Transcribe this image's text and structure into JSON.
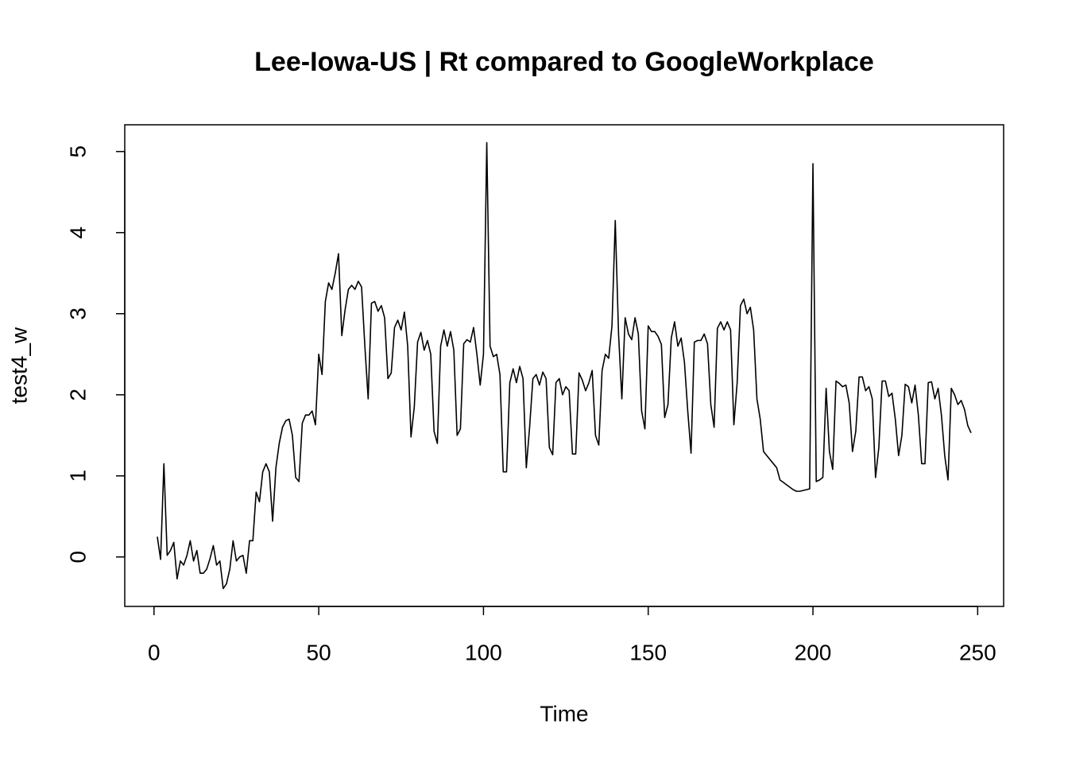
{
  "chart_data": {
    "type": "line",
    "title": "Lee-Iowa-US | Rt compared to GoogleWorkplace",
    "x_label": "Time",
    "y_label": "test4_w",
    "color": "#000000",
    "xlim": [
      -8.88,
      257.88
    ],
    "ylim": [
      -0.61,
      5.33
    ],
    "xticks": [
      0,
      50,
      100,
      150,
      200,
      250
    ],
    "yticks": [
      0,
      1,
      2,
      3,
      4,
      5
    ],
    "grid": false,
    "x": [
      1,
      2,
      3,
      4,
      5,
      6,
      7,
      8,
      9,
      10,
      11,
      12,
      13,
      14,
      15,
      16,
      17,
      18,
      19,
      20,
      21,
      22,
      23,
      24,
      25,
      26,
      27,
      28,
      29,
      30,
      31,
      32,
      33,
      34,
      35,
      36,
      37,
      38,
      39,
      40,
      41,
      42,
      43,
      44,
      45,
      46,
      47,
      48,
      49,
      50,
      51,
      52,
      53,
      54,
      55,
      56,
      57,
      58,
      59,
      60,
      61,
      62,
      63,
      64,
      65,
      66,
      67,
      68,
      69,
      70,
      71,
      72,
      73,
      74,
      75,
      76,
      77,
      78,
      79,
      80,
      81,
      82,
      83,
      84,
      85,
      86,
      87,
      88,
      89,
      90,
      91,
      92,
      93,
      94,
      95,
      96,
      97,
      98,
      99,
      100,
      101,
      102,
      103,
      104,
      105,
      106,
      107,
      108,
      109,
      110,
      111,
      112,
      113,
      114,
      115,
      116,
      117,
      118,
      119,
      120,
      121,
      122,
      123,
      124,
      125,
      126,
      127,
      128,
      129,
      130,
      131,
      132,
      133,
      134,
      135,
      136,
      137,
      138,
      139,
      140,
      141,
      142,
      143,
      144,
      145,
      146,
      147,
      148,
      149,
      150,
      151,
      152,
      153,
      154,
      155,
      156,
      157,
      158,
      159,
      160,
      161,
      162,
      163,
      164,
      165,
      166,
      167,
      168,
      169,
      170,
      171,
      172,
      173,
      174,
      175,
      176,
      177,
      178,
      179,
      180,
      181,
      182,
      183,
      184,
      185,
      186,
      187,
      188,
      189,
      190,
      191,
      192,
      193,
      194,
      195,
      196,
      197,
      198,
      199,
      200,
      201,
      202,
      203,
      204,
      205,
      206,
      207,
      208,
      209,
      210,
      211,
      212,
      213,
      214,
      215,
      216,
      217,
      218,
      219,
      220,
      221,
      222,
      223,
      224,
      225,
      226,
      227,
      228,
      229,
      230,
      231,
      232,
      233,
      234,
      235,
      236,
      237,
      238,
      239,
      240,
      241,
      242,
      243,
      244,
      245,
      246,
      247,
      248
    ],
    "values": [
      0.25,
      -0.03,
      1.15,
      0.02,
      0.08,
      0.18,
      -0.27,
      -0.05,
      -0.1,
      0.02,
      0.2,
      -0.05,
      0.08,
      -0.2,
      -0.2,
      -0.15,
      -0.02,
      0.14,
      -0.1,
      -0.05,
      -0.39,
      -0.33,
      -0.15,
      0.2,
      -0.05,
      0.0,
      0.02,
      -0.2,
      0.2,
      0.2,
      0.8,
      0.68,
      1.05,
      1.15,
      1.05,
      0.44,
      1.1,
      1.4,
      1.6,
      1.68,
      1.7,
      1.5,
      0.98,
      0.93,
      1.65,
      1.75,
      1.75,
      1.8,
      1.63,
      2.5,
      2.25,
      3.15,
      3.38,
      3.3,
      3.5,
      3.74,
      2.73,
      3.05,
      3.3,
      3.35,
      3.3,
      3.4,
      3.33,
      2.6,
      1.95,
      3.13,
      3.15,
      3.03,
      3.1,
      2.95,
      2.2,
      2.27,
      2.83,
      2.92,
      2.8,
      3.02,
      2.6,
      1.48,
      1.85,
      2.65,
      2.77,
      2.55,
      2.67,
      2.5,
      1.55,
      1.4,
      2.6,
      2.8,
      2.6,
      2.78,
      2.55,
      1.5,
      1.58,
      2.63,
      2.68,
      2.65,
      2.83,
      2.5,
      2.12,
      2.5,
      5.11,
      2.6,
      2.47,
      2.5,
      2.25,
      1.05,
      1.05,
      2.15,
      2.32,
      2.15,
      2.35,
      2.2,
      1.1,
      1.6,
      2.2,
      2.25,
      2.12,
      2.28,
      2.2,
      1.35,
      1.26,
      2.15,
      2.2,
      2.0,
      2.1,
      2.05,
      1.27,
      1.27,
      2.27,
      2.18,
      2.05,
      2.15,
      2.3,
      1.5,
      1.38,
      2.3,
      2.5,
      2.45,
      2.85,
      4.15,
      2.75,
      1.95,
      2.95,
      2.75,
      2.68,
      2.95,
      2.75,
      1.8,
      1.58,
      2.85,
      2.78,
      2.78,
      2.72,
      2.62,
      1.72,
      1.88,
      2.7,
      2.9,
      2.6,
      2.7,
      2.4,
      1.8,
      1.28,
      2.65,
      2.67,
      2.67,
      2.75,
      2.63,
      1.88,
      1.6,
      2.82,
      2.9,
      2.8,
      2.9,
      2.8,
      1.63,
      2.15,
      3.1,
      3.18,
      3.0,
      3.08,
      2.8,
      1.95,
      1.7,
      1.3,
      1.25,
      1.2,
      1.15,
      1.1,
      0.95,
      0.92,
      0.89,
      0.86,
      0.83,
      0.81,
      0.81,
      0.82,
      0.83,
      0.84,
      4.85,
      0.93,
      0.95,
      0.98,
      2.08,
      1.3,
      1.08,
      2.17,
      2.14,
      2.1,
      2.12,
      1.9,
      1.3,
      1.55,
      2.22,
      2.22,
      2.05,
      2.1,
      1.95,
      0.98,
      1.35,
      2.17,
      2.17,
      1.98,
      2.02,
      1.7,
      1.25,
      1.5,
      2.13,
      2.1,
      1.9,
      2.12,
      1.75,
      1.15,
      1.15,
      2.15,
      2.16,
      1.95,
      2.08,
      1.75,
      1.25,
      0.95,
      2.08,
      2.0,
      1.88,
      1.93,
      1.82,
      1.62,
      1.53
    ]
  }
}
